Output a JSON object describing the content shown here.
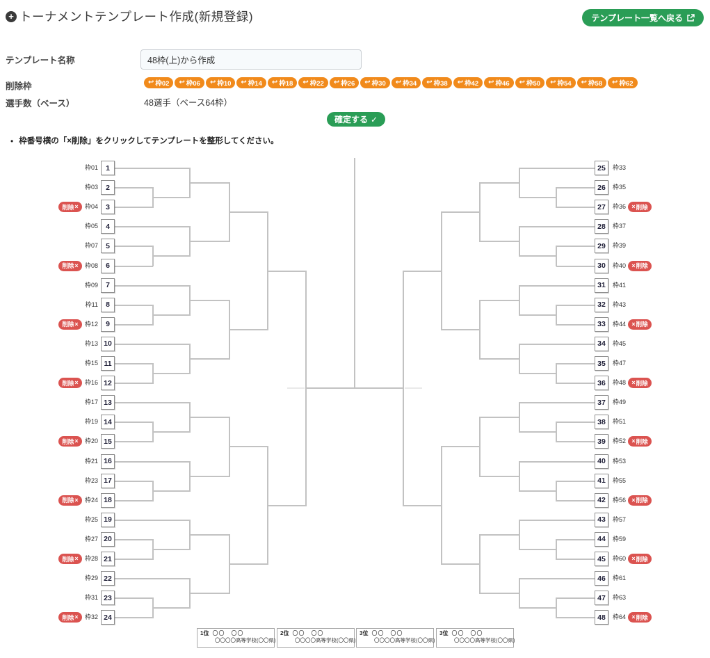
{
  "header": {
    "title": "トーナメントテンプレート作成(新規登録)",
    "back_button": "テンプレート一覧へ戻る"
  },
  "form": {
    "name_label": "テンプレート名称",
    "name_value": "48枠(上)から作成",
    "removed_label": "削除枠",
    "removed_slots": [
      "枠02",
      "枠06",
      "枠10",
      "枠14",
      "枠18",
      "枠22",
      "枠26",
      "枠30",
      "枠34",
      "枠38",
      "枠42",
      "枠46",
      "枠50",
      "枠54",
      "枠58",
      "枠62"
    ],
    "players_label": "選手数（ベース）",
    "players_value": "48選手（ベース64枠）",
    "confirm_label": "確定する"
  },
  "note": "枠番号横の「×削除」をクリックしてテンプレートを整形してください。",
  "bracket": {
    "delete_button_label": "削除",
    "left_slots": [
      {
        "label": "枠01",
        "number": "1",
        "deletable": false
      },
      {
        "label": "枠03",
        "number": "2",
        "deletable": false
      },
      {
        "label": "枠04",
        "number": "3",
        "deletable": true
      },
      {
        "label": "枠05",
        "number": "4",
        "deletable": false
      },
      {
        "label": "枠07",
        "number": "5",
        "deletable": false
      },
      {
        "label": "枠08",
        "number": "6",
        "deletable": true
      },
      {
        "label": "枠09",
        "number": "7",
        "deletable": false
      },
      {
        "label": "枠11",
        "number": "8",
        "deletable": false
      },
      {
        "label": "枠12",
        "number": "9",
        "deletable": true
      },
      {
        "label": "枠13",
        "number": "10",
        "deletable": false
      },
      {
        "label": "枠15",
        "number": "11",
        "deletable": false
      },
      {
        "label": "枠16",
        "number": "12",
        "deletable": true
      },
      {
        "label": "枠17",
        "number": "13",
        "deletable": false
      },
      {
        "label": "枠19",
        "number": "14",
        "deletable": false
      },
      {
        "label": "枠20",
        "number": "15",
        "deletable": true
      },
      {
        "label": "枠21",
        "number": "16",
        "deletable": false
      },
      {
        "label": "枠23",
        "number": "17",
        "deletable": false
      },
      {
        "label": "枠24",
        "number": "18",
        "deletable": true
      },
      {
        "label": "枠25",
        "number": "19",
        "deletable": false
      },
      {
        "label": "枠27",
        "number": "20",
        "deletable": false
      },
      {
        "label": "枠28",
        "number": "21",
        "deletable": true
      },
      {
        "label": "枠29",
        "number": "22",
        "deletable": false
      },
      {
        "label": "枠31",
        "number": "23",
        "deletable": false
      },
      {
        "label": "枠32",
        "number": "24",
        "deletable": true
      }
    ],
    "right_slots": [
      {
        "label": "枠33",
        "number": "25",
        "deletable": false
      },
      {
        "label": "枠35",
        "number": "26",
        "deletable": false
      },
      {
        "label": "枠36",
        "number": "27",
        "deletable": true
      },
      {
        "label": "枠37",
        "number": "28",
        "deletable": false
      },
      {
        "label": "枠39",
        "number": "29",
        "deletable": false
      },
      {
        "label": "枠40",
        "number": "30",
        "deletable": true
      },
      {
        "label": "枠41",
        "number": "31",
        "deletable": false
      },
      {
        "label": "枠43",
        "number": "32",
        "deletable": false
      },
      {
        "label": "枠44",
        "number": "33",
        "deletable": true
      },
      {
        "label": "枠45",
        "number": "34",
        "deletable": false
      },
      {
        "label": "枠47",
        "number": "35",
        "deletable": false
      },
      {
        "label": "枠48",
        "number": "36",
        "deletable": true
      },
      {
        "label": "枠49",
        "number": "37",
        "deletable": false
      },
      {
        "label": "枠51",
        "number": "38",
        "deletable": false
      },
      {
        "label": "枠52",
        "number": "39",
        "deletable": true
      },
      {
        "label": "枠53",
        "number": "40",
        "deletable": false
      },
      {
        "label": "枠55",
        "number": "41",
        "deletable": false
      },
      {
        "label": "枠56",
        "number": "42",
        "deletable": true
      },
      {
        "label": "枠57",
        "number": "43",
        "deletable": false
      },
      {
        "label": "枠59",
        "number": "44",
        "deletable": false
      },
      {
        "label": "枠60",
        "number": "45",
        "deletable": true
      },
      {
        "label": "枠61",
        "number": "46",
        "deletable": false
      },
      {
        "label": "枠63",
        "number": "47",
        "deletable": false
      },
      {
        "label": "枠64",
        "number": "48",
        "deletable": true
      }
    ]
  },
  "results": [
    {
      "rank": "1位",
      "name": "〇〇　〇〇",
      "school": "〇〇〇〇高等学校(〇〇県)"
    },
    {
      "rank": "2位",
      "name": "〇〇　〇〇",
      "school": "〇〇〇〇高等学校(〇〇県)"
    },
    {
      "rank": "3位",
      "name": "〇〇　〇〇",
      "school": "〇〇〇〇高等学校(〇〇県)"
    },
    {
      "rank": "3位",
      "name": "〇〇　〇〇",
      "school": "〇〇〇〇高等学校(〇〇県)"
    }
  ],
  "colors": {
    "green": "#2a9d56",
    "orange": "#f18a1b",
    "red": "#db5350",
    "line_gray": "#c2c2c2"
  }
}
